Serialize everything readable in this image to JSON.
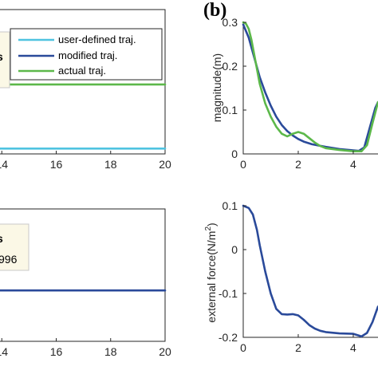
{
  "colors": {
    "user_defined": "#4fc3e0",
    "modified": "#2a4a9a",
    "actual": "#5cb84a",
    "axis": "#262626",
    "annotation_bg": "#fbf8e6"
  },
  "panel_b_label": "(b)",
  "chart_data": [
    {
      "id": "a-top",
      "type": "line",
      "xlim": [
        12,
        20
      ],
      "xticks": [
        14,
        16,
        18,
        20
      ],
      "xtick_labels": [
        "14",
        "16",
        "18",
        "20"
      ],
      "legend": {
        "placement": "top-right",
        "entries": [
          {
            "label": "user-defined traj.",
            "color_key": "user_defined"
          },
          {
            "label": "modified traj.",
            "color_key": "modified"
          },
          {
            "label": "actual traj.",
            "color_key": "actual"
          }
        ]
      },
      "annotation_text": "s",
      "series": [
        {
          "color_key": "user_defined",
          "x": [
            12,
            20
          ],
          "y": [
            0,
            0
          ]
        },
        {
          "color_key": "actual",
          "x": [
            12,
            20
          ],
          "y": [
            0.6,
            0.6
          ]
        }
      ],
      "ylim": [
        -0.05,
        1.3
      ]
    },
    {
      "id": "a-bottom",
      "type": "line",
      "xlim": [
        12,
        20
      ],
      "xticks": [
        14,
        16,
        18,
        20
      ],
      "xtick_labels": [
        "14",
        "16",
        "18",
        "20"
      ],
      "annotation_lines": [
        "s",
        "996"
      ],
      "series": [
        {
          "color_key": "modified",
          "x": [
            12,
            20
          ],
          "y": [
            0.5,
            0.5
          ]
        }
      ],
      "ylim": [
        0,
        1.3
      ]
    },
    {
      "id": "b-top",
      "type": "line",
      "ylabel": "magnitude(m)",
      "xlim": [
        0,
        4.9
      ],
      "ylim": [
        0,
        0.3
      ],
      "xticks": [
        0,
        2,
        4
      ],
      "xtick_labels": [
        "0",
        "2",
        "4"
      ],
      "yticks": [
        0,
        0.1,
        0.2,
        0.3
      ],
      "ytick_labels": [
        "0",
        "0.1",
        "0.2",
        "0.3"
      ],
      "series": [
        {
          "color_key": "modified",
          "x": [
            0,
            0.2,
            0.4,
            0.6,
            0.8,
            1.0,
            1.2,
            1.4,
            1.6,
            1.8,
            2.0,
            2.2,
            2.5,
            3.0,
            3.5,
            4.0,
            4.2,
            4.4,
            4.6,
            4.8,
            4.9
          ],
          "y": [
            0.295,
            0.265,
            0.22,
            0.175,
            0.14,
            0.11,
            0.085,
            0.066,
            0.052,
            0.042,
            0.034,
            0.028,
            0.022,
            0.016,
            0.011,
            0.008,
            0.007,
            0.015,
            0.06,
            0.105,
            0.118
          ]
        },
        {
          "color_key": "actual",
          "x": [
            0,
            0.1,
            0.2,
            0.3,
            0.45,
            0.6,
            0.8,
            1.0,
            1.2,
            1.4,
            1.6,
            1.8,
            2.0,
            2.2,
            2.4,
            2.6,
            2.8,
            3.0,
            3.5,
            4.0,
            4.3,
            4.5,
            4.7,
            4.9
          ],
          "y": [
            0.3,
            0.297,
            0.285,
            0.26,
            0.21,
            0.16,
            0.115,
            0.085,
            0.062,
            0.046,
            0.04,
            0.046,
            0.05,
            0.046,
            0.036,
            0.026,
            0.018,
            0.013,
            0.009,
            0.006,
            0.006,
            0.02,
            0.07,
            0.118
          ]
        }
      ]
    },
    {
      "id": "b-bottom",
      "type": "line",
      "ylabel_main": "external force(N/m",
      "ylabel_sup": "2",
      "ylabel_end": ")",
      "xlim": [
        0,
        4.9
      ],
      "ylim": [
        -0.2,
        0.1
      ],
      "xticks": [
        0,
        2,
        4
      ],
      "xtick_labels": [
        "0",
        "2",
        "4"
      ],
      "yticks": [
        -0.2,
        -0.1,
        0,
        0.1
      ],
      "ytick_labels": [
        "-0.2",
        "-0.1",
        "0",
        "0.1"
      ],
      "series": [
        {
          "color_key": "modified",
          "x": [
            0,
            0.2,
            0.35,
            0.5,
            0.6,
            0.8,
            1.0,
            1.2,
            1.4,
            1.6,
            1.8,
            2.0,
            2.2,
            2.4,
            2.6,
            2.8,
            3.0,
            3.5,
            4.0,
            4.2,
            4.3,
            4.5,
            4.7,
            4.9
          ],
          "y": [
            0.1,
            0.095,
            0.08,
            0.045,
            0.01,
            -0.05,
            -0.1,
            -0.135,
            -0.147,
            -0.148,
            -0.147,
            -0.15,
            -0.16,
            -0.172,
            -0.18,
            -0.185,
            -0.188,
            -0.191,
            -0.192,
            -0.196,
            -0.198,
            -0.19,
            -0.165,
            -0.13
          ]
        }
      ]
    }
  ]
}
